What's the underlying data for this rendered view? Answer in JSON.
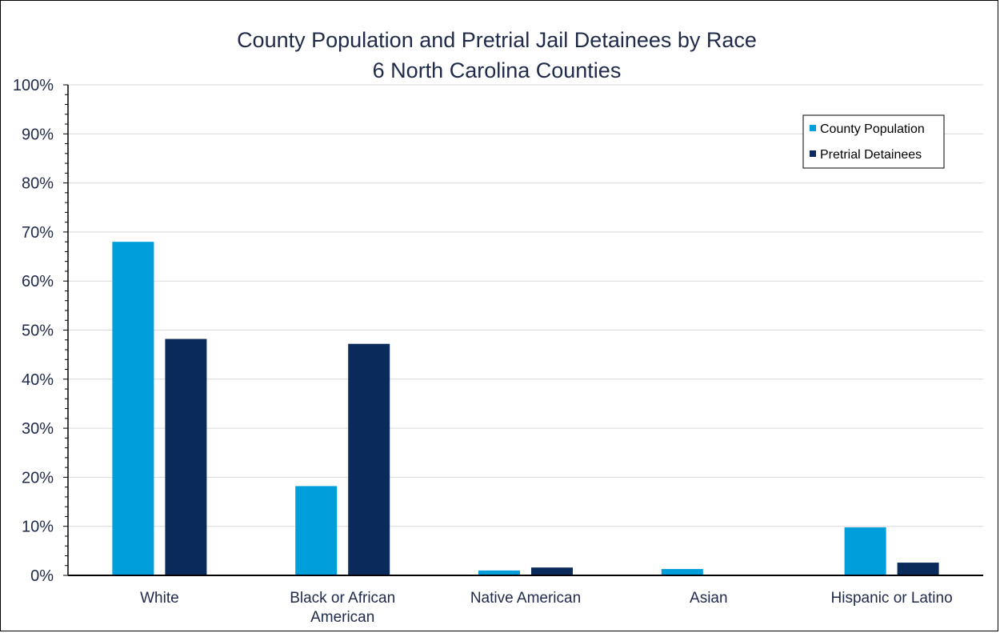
{
  "chart_data": {
    "type": "bar",
    "title": "County Population and Pretrial Jail Detainees by Race",
    "subtitle": "6 North Carolina Counties",
    "categories": [
      [
        "White"
      ],
      [
        "Black or African",
        "American"
      ],
      [
        "Native American"
      ],
      [
        "Asian"
      ],
      [
        "Hispanic or Latino"
      ]
    ],
    "series": [
      {
        "name": "County Population",
        "color": "#009fdb",
        "values": [
          68,
          18.2,
          1.0,
          1.3,
          9.8
        ]
      },
      {
        "name": "Pretrial Detainees",
        "color": "#0a2a5c",
        "values": [
          48.2,
          47.2,
          1.6,
          0,
          2.6
        ]
      }
    ],
    "ylim": [
      0,
      100
    ],
    "yticks": [
      0,
      10,
      20,
      30,
      40,
      50,
      60,
      70,
      80,
      90,
      100
    ],
    "ytick_suffix": "%",
    "grid": true,
    "legend_position": "top-right"
  }
}
